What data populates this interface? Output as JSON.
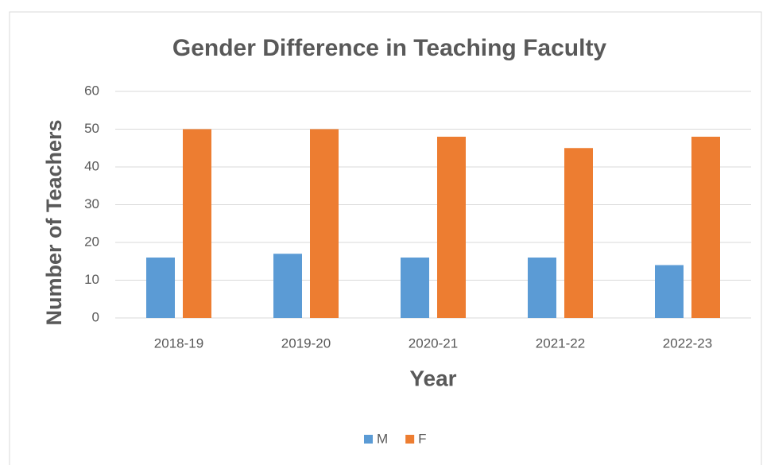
{
  "chart_data": {
    "type": "bar",
    "title": "Gender Difference in Teaching Faculty",
    "x_label": "Year",
    "y_label": "Number of Teachers",
    "categories": [
      "2018-19",
      "2019-20",
      "2020-21",
      "2021-22",
      "2022-23"
    ],
    "series": [
      {
        "name": "M",
        "color": "#5b9bd5",
        "values": [
          16,
          17,
          16,
          16,
          14
        ]
      },
      {
        "name": "F",
        "color": "#ed7d31",
        "values": [
          50,
          50,
          48,
          45,
          48
        ]
      }
    ],
    "ylim": [
      0,
      60
    ],
    "yticks": [
      0,
      10,
      20,
      30,
      40,
      50,
      60
    ],
    "grid": true,
    "legend": "bottom"
  }
}
